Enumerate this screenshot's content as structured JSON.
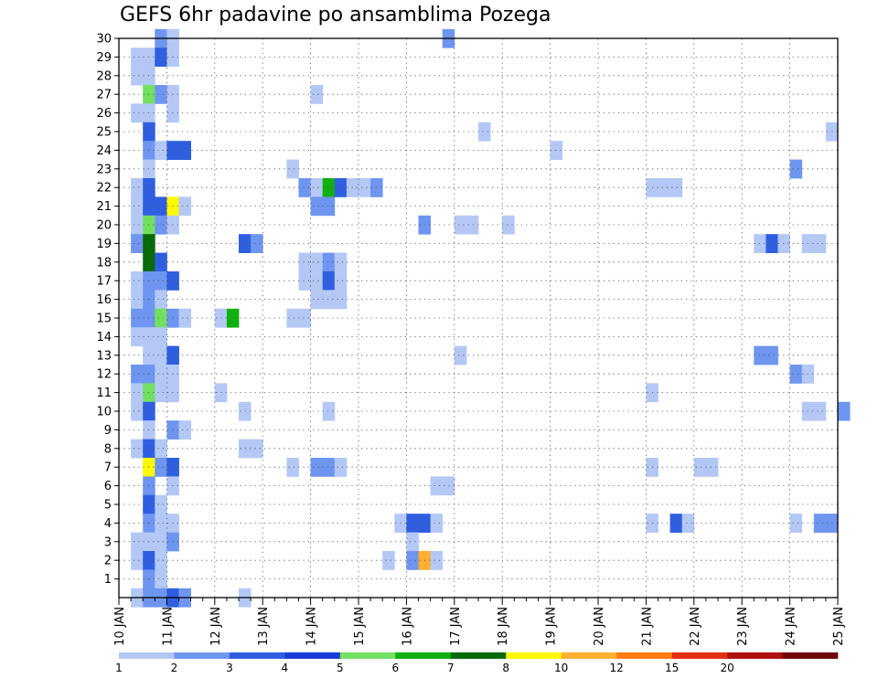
{
  "chart_data": {
    "type": "heatmap",
    "title": "GEFS 6hr padavine po ansamblima Pozega",
    "x_tick_labels": [
      "10 JAN",
      "11 JAN",
      "12 JAN",
      "13 JAN",
      "14 JAN",
      "15 JAN",
      "16 JAN",
      "17 JAN",
      "18 JAN",
      "19 JAN",
      "20 JAN",
      "21 JAN",
      "22 JAN",
      "23 JAN",
      "24 JAN",
      "25 JAN"
    ],
    "y_tick_labels": [
      "1",
      "2",
      "3",
      "4",
      "5",
      "6",
      "7",
      "8",
      "9",
      "10",
      "11",
      "12",
      "13",
      "14",
      "15",
      "16",
      "17",
      "18",
      "19",
      "20",
      "21",
      "22",
      "23",
      "24",
      "25",
      "26",
      "27",
      "28",
      "29",
      "30"
    ],
    "ylim": [
      0,
      30
    ],
    "time_steps_per_day": 4,
    "grid": true,
    "legend_position": "bottom",
    "colorbar": {
      "labels": [
        "1",
        "2",
        "3",
        "4",
        "5",
        "6",
        "7",
        "8",
        "10",
        "12",
        "15",
        "20"
      ],
      "colors": [
        "#b4c8f5",
        "#6e96f0",
        "#2f5fe0",
        "#1a3fd8",
        "#72e060",
        "#10b010",
        "#086a08",
        "#fffa00",
        "#ffb030",
        "#ff7c10",
        "#e03010",
        "#b01010",
        "#700808"
      ]
    },
    "member_rows": [
      {
        "member": 30,
        "cells": [
          [
            3,
            2
          ],
          [
            4,
            1
          ],
          [
            27,
            2
          ]
        ]
      },
      {
        "member": 29,
        "cells": [
          [
            1,
            1
          ],
          [
            2,
            1
          ],
          [
            3,
            3
          ],
          [
            4,
            1
          ]
        ]
      },
      {
        "member": 28,
        "cells": [
          [
            1,
            1
          ],
          [
            2,
            1
          ]
        ]
      },
      {
        "member": 27,
        "cells": [
          [
            2,
            5
          ],
          [
            3,
            2
          ],
          [
            4,
            1
          ],
          [
            16,
            1
          ]
        ]
      },
      {
        "member": 26,
        "cells": [
          [
            1,
            1
          ],
          [
            2,
            1
          ],
          [
            4,
            1
          ]
        ]
      },
      {
        "member": 25,
        "cells": [
          [
            2,
            3
          ],
          [
            30,
            1
          ],
          [
            59,
            1
          ]
        ]
      },
      {
        "member": 24,
        "cells": [
          [
            2,
            2
          ],
          [
            3,
            1
          ],
          [
            4,
            3
          ],
          [
            5,
            3
          ],
          [
            36,
            1
          ]
        ]
      },
      {
        "member": 23,
        "cells": [
          [
            2,
            1
          ],
          [
            14,
            1
          ],
          [
            56,
            2
          ]
        ]
      },
      {
        "member": 22,
        "cells": [
          [
            1,
            1
          ],
          [
            2,
            3
          ],
          [
            15,
            2
          ],
          [
            16,
            1
          ],
          [
            17,
            6
          ],
          [
            18,
            3
          ],
          [
            19,
            1
          ],
          [
            20,
            1
          ],
          [
            21,
            2
          ],
          [
            44,
            1
          ],
          [
            45,
            1
          ],
          [
            46,
            1
          ]
        ]
      },
      {
        "member": 21,
        "cells": [
          [
            1,
            1
          ],
          [
            2,
            3
          ],
          [
            3,
            3
          ],
          [
            4,
            8
          ],
          [
            5,
            1
          ],
          [
            16,
            2
          ],
          [
            17,
            2
          ]
        ]
      },
      {
        "member": 20,
        "cells": [
          [
            1,
            1
          ],
          [
            2,
            5
          ],
          [
            3,
            2
          ],
          [
            4,
            1
          ],
          [
            25,
            2
          ],
          [
            28,
            1
          ],
          [
            29,
            1
          ],
          [
            32,
            1
          ]
        ]
      },
      {
        "member": 19,
        "cells": [
          [
            1,
            2
          ],
          [
            2,
            7
          ],
          [
            10,
            3
          ],
          [
            11,
            2
          ],
          [
            53,
            1
          ],
          [
            54,
            3
          ],
          [
            55,
            1
          ],
          [
            57,
            1
          ],
          [
            58,
            1
          ]
        ]
      },
      {
        "member": 18,
        "cells": [
          [
            2,
            7
          ],
          [
            3,
            3
          ],
          [
            15,
            1
          ],
          [
            16,
            1
          ],
          [
            17,
            2
          ],
          [
            18,
            1
          ]
        ]
      },
      {
        "member": 17,
        "cells": [
          [
            1,
            1
          ],
          [
            2,
            2
          ],
          [
            3,
            2
          ],
          [
            4,
            3
          ],
          [
            15,
            1
          ],
          [
            16,
            1
          ],
          [
            17,
            3
          ],
          [
            18,
            1
          ]
        ]
      },
      {
        "member": 16,
        "cells": [
          [
            1,
            1
          ],
          [
            2,
            2
          ],
          [
            3,
            1
          ],
          [
            16,
            1
          ],
          [
            17,
            1
          ],
          [
            18,
            1
          ]
        ]
      },
      {
        "member": 15,
        "cells": [
          [
            1,
            2
          ],
          [
            2,
            2
          ],
          [
            3,
            5
          ],
          [
            4,
            2
          ],
          [
            5,
            1
          ],
          [
            8,
            1
          ],
          [
            9,
            6
          ],
          [
            14,
            1
          ],
          [
            15,
            1
          ]
        ]
      },
      {
        "member": 14,
        "cells": [
          [
            1,
            1
          ],
          [
            2,
            1
          ],
          [
            3,
            1
          ]
        ]
      },
      {
        "member": 13,
        "cells": [
          [
            2,
            1
          ],
          [
            3,
            1
          ],
          [
            4,
            3
          ],
          [
            28,
            1
          ],
          [
            53,
            2
          ],
          [
            54,
            2
          ]
        ]
      },
      {
        "member": 12,
        "cells": [
          [
            1,
            2
          ],
          [
            2,
            2
          ],
          [
            3,
            1
          ],
          [
            4,
            1
          ],
          [
            56,
            2
          ],
          [
            57,
            1
          ]
        ]
      },
      {
        "member": 11,
        "cells": [
          [
            1,
            1
          ],
          [
            2,
            5
          ],
          [
            3,
            1
          ],
          [
            4,
            1
          ],
          [
            8,
            1
          ],
          [
            44,
            1
          ]
        ]
      },
      {
        "member": 10,
        "cells": [
          [
            1,
            1
          ],
          [
            2,
            3
          ],
          [
            10,
            1
          ],
          [
            17,
            1
          ],
          [
            57,
            1
          ],
          [
            58,
            1
          ],
          [
            60,
            2
          ]
        ]
      },
      {
        "member": 9,
        "cells": [
          [
            2,
            1
          ],
          [
            4,
            2
          ],
          [
            5,
            1
          ]
        ]
      },
      {
        "member": 8,
        "cells": [
          [
            1,
            1
          ],
          [
            2,
            3
          ],
          [
            3,
            1
          ],
          [
            10,
            1
          ],
          [
            11,
            1
          ]
        ]
      },
      {
        "member": 7,
        "cells": [
          [
            2,
            8
          ],
          [
            3,
            2
          ],
          [
            4,
            3
          ],
          [
            14,
            1
          ],
          [
            16,
            2
          ],
          [
            17,
            2
          ],
          [
            18,
            1
          ],
          [
            44,
            1
          ],
          [
            48,
            1
          ],
          [
            49,
            1
          ]
        ]
      },
      {
        "member": 6,
        "cells": [
          [
            2,
            2
          ],
          [
            4,
            1
          ],
          [
            26,
            1
          ],
          [
            27,
            1
          ]
        ]
      },
      {
        "member": 5,
        "cells": [
          [
            2,
            3
          ],
          [
            3,
            1
          ]
        ]
      },
      {
        "member": 4,
        "cells": [
          [
            2,
            2
          ],
          [
            3,
            1
          ],
          [
            4,
            1
          ],
          [
            23,
            1
          ],
          [
            24,
            3
          ],
          [
            25,
            3
          ],
          [
            26,
            1
          ],
          [
            44,
            1
          ],
          [
            46,
            3
          ],
          [
            47,
            1
          ],
          [
            56,
            1
          ],
          [
            58,
            2
          ],
          [
            59,
            2
          ]
        ]
      },
      {
        "member": 3,
        "cells": [
          [
            1,
            1
          ],
          [
            2,
            1
          ],
          [
            3,
            1
          ],
          [
            4,
            2
          ],
          [
            24,
            1
          ]
        ]
      },
      {
        "member": 2,
        "cells": [
          [
            1,
            1
          ],
          [
            2,
            3
          ],
          [
            3,
            1
          ],
          [
            22,
            1
          ],
          [
            24,
            2
          ],
          [
            25,
            9
          ],
          [
            26,
            1
          ]
        ]
      },
      {
        "member": 1,
        "cells": [
          [
            2,
            2
          ],
          [
            3,
            1
          ]
        ]
      }
    ],
    "extra_cells": [
      {
        "y": 0,
        "cells": [
          [
            1,
            1
          ],
          [
            2,
            2
          ],
          [
            3,
            2
          ],
          [
            4,
            3
          ],
          [
            5,
            2
          ],
          [
            10,
            1
          ]
        ]
      }
    ]
  }
}
